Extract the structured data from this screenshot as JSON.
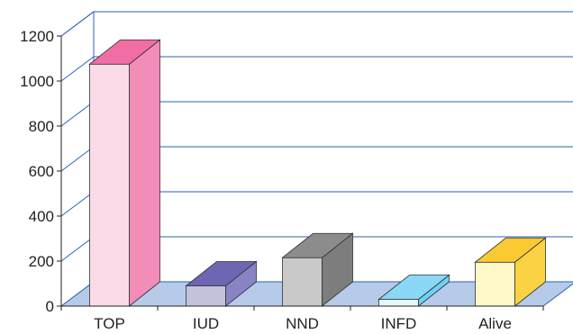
{
  "chart_data": {
    "type": "bar",
    "categories": [
      "TOP",
      "IUD",
      "NND",
      "INFD",
      "Alive"
    ],
    "values": [
      1075,
      90,
      215,
      30,
      195
    ],
    "ylim": [
      0,
      1200
    ],
    "yticks": [
      0,
      200,
      400,
      600,
      800,
      1000,
      1200
    ],
    "grid": true,
    "legend": "none",
    "three_d": true,
    "colors": {
      "front": [
        "#fbdbe8",
        "#c2c2dc",
        "#c9c9c9",
        "#e6f8fc",
        "#fff8c8"
      ],
      "top": [
        "#f06ea4",
        "#6e66b2",
        "#8c8c8c",
        "#8ad8f5",
        "#fbc932"
      ],
      "side": [
        "#f28cb8",
        "#8883c2",
        "#7d7d7d",
        "#6cd2f5",
        "#fbd243"
      ],
      "wall": "#ffffff",
      "floor": "#b6cbe9",
      "grid": "#2b63b4"
    }
  }
}
